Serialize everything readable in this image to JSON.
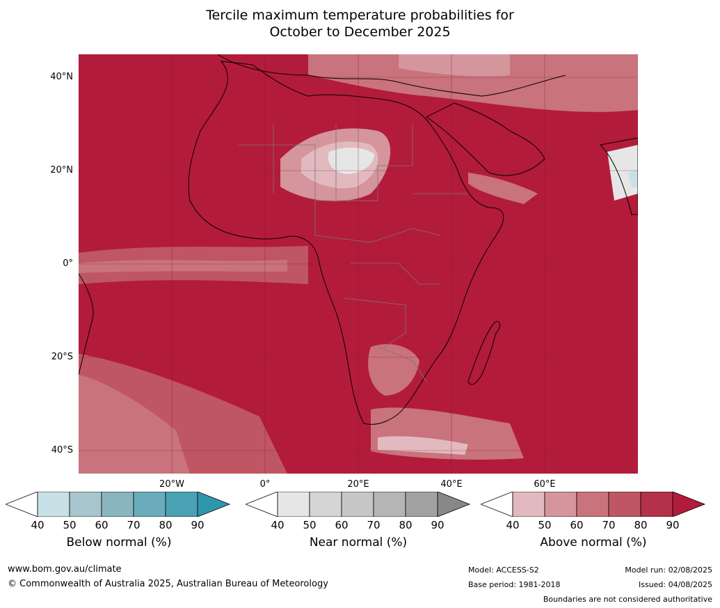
{
  "title_line1": "Tercile maximum temperature probabilities for",
  "title_line2": "October to December 2025",
  "lat_labels": [
    "40°N",
    "20°N",
    "0°",
    "20°S",
    "40°S"
  ],
  "lon_labels": [
    "20°W",
    "0°",
    "20°E",
    "40°E",
    "60°E"
  ],
  "colorbars": [
    {
      "label": "Below normal (%)",
      "ticks": [
        "40",
        "50",
        "60",
        "70",
        "80",
        "90"
      ],
      "colors": [
        "#ffffff",
        "#c8e1e7",
        "#a7c5cc",
        "#88b5c0",
        "#6aacbb",
        "#4aa1b3",
        "#2f97ad"
      ]
    },
    {
      "label": "Near normal (%)",
      "ticks": [
        "40",
        "50",
        "60",
        "70",
        "80",
        "90"
      ],
      "colors": [
        "#ffffff",
        "#e6e6e6",
        "#d5d5d5",
        "#c6c6c6",
        "#b5b5b5",
        "#a2a2a2",
        "#888888"
      ]
    },
    {
      "label": "Above normal (%)",
      "ticks": [
        "40",
        "50",
        "60",
        "70",
        "80",
        "90"
      ],
      "colors": [
        "#ffffff",
        "#e2b9bf",
        "#d4959d",
        "#c9737c",
        "#bf5664",
        "#b3314a",
        "#b31b3b"
      ]
    }
  ],
  "footer": {
    "website": "www.bom.gov.au/climate",
    "copyright": "© Commonwealth of Australia 2025, Australian Bureau of Meteorology",
    "model": "Model: ACCESS-S2",
    "base_period": "Base period: 1981-2018",
    "model_run": "Model run: 02/08/2025",
    "issued": "Issued: 04/08/2025",
    "disclaimer": "Boundaries are not considered authoritative"
  }
}
